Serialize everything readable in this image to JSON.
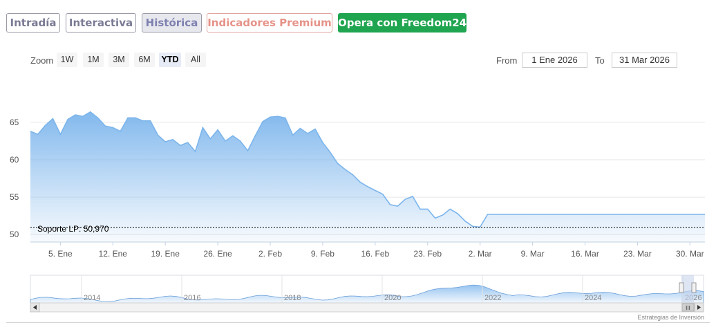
{
  "tabs": [
    {
      "label": "Intradía"
    },
    {
      "label": "Interactiva"
    },
    {
      "label": "Histórica"
    },
    {
      "label": "Indicadores Premium"
    },
    {
      "label": "Opera con Freedom24"
    }
  ],
  "range_selector": {
    "zoom_label": "Zoom",
    "buttons": [
      "1W",
      "1M",
      "3M",
      "6M",
      "YTD",
      "All"
    ],
    "selected": "YTD",
    "from_label": "From",
    "from_value": "1 Ene 2026",
    "to_label": "To",
    "to_value": "31 Mar 2026"
  },
  "colors": {
    "series_line": "#7cb5ec",
    "support_line": "#000000",
    "cta_green": "#1fa44f"
  },
  "chart_data": {
    "type": "area",
    "ylim": [
      49,
      71
    ],
    "y_ticks": [
      50,
      55,
      60,
      65
    ],
    "x_ticks": [
      {
        "label": "5. Ene",
        "x": 5
      },
      {
        "label": "12. Ene",
        "x": 12
      },
      {
        "label": "19. Ene",
        "x": 19
      },
      {
        "label": "26. Ene",
        "x": 26
      },
      {
        "label": "2. Feb",
        "x": 33
      },
      {
        "label": "9. Feb",
        "x": 40
      },
      {
        "label": "16. Feb",
        "x": 47
      },
      {
        "label": "23. Feb",
        "x": 54
      },
      {
        "label": "2. Mar",
        "x": 61
      },
      {
        "label": "9. Mar",
        "x": 68
      },
      {
        "label": "16. Mar",
        "x": 75
      },
      {
        "label": "23. Mar",
        "x": 82
      },
      {
        "label": "30. Mar",
        "x": 89
      }
    ],
    "xlim": [
      1,
      91
    ],
    "series": [
      {
        "x": [
          1,
          2,
          3,
          4,
          5,
          6,
          7,
          8,
          9,
          10,
          11,
          12,
          13,
          14,
          15,
          16,
          17,
          18,
          19,
          20,
          21,
          22,
          23,
          24,
          25,
          26,
          27,
          28,
          29,
          30,
          31,
          32,
          33,
          34,
          35,
          36,
          37,
          38,
          39,
          40,
          41,
          42,
          43,
          44,
          45,
          46,
          47,
          48,
          49,
          50,
          51,
          52,
          53,
          54,
          55,
          56,
          57,
          58,
          59,
          60,
          61,
          62,
          63,
          64,
          65,
          66,
          67,
          68,
          69,
          70,
          71,
          72,
          73,
          74,
          75,
          76,
          77,
          78,
          79,
          80,
          81,
          82,
          83,
          84,
          85,
          86,
          87,
          88,
          89,
          90,
          91
        ],
        "values": [
          63.8,
          63.4,
          64.6,
          65.5,
          63.4,
          65.4,
          66.0,
          65.8,
          66.4,
          65.6,
          64.5,
          64.3,
          63.8,
          65.6,
          65.6,
          65.2,
          65.2,
          63.3,
          62.4,
          62.7,
          61.9,
          62.3,
          61.1,
          64.3,
          62.8,
          64.0,
          62.5,
          63.2,
          62.5,
          61.2,
          63.2,
          65.1,
          65.7,
          65.8,
          65.6,
          63.3,
          64.2,
          63.5,
          64.1,
          62.3,
          61.0,
          59.5,
          58.7,
          58.0,
          57.0,
          56.4,
          55.9,
          55.4,
          54.0,
          53.8,
          54.7,
          55.1,
          53.4,
          53.4,
          52.2,
          52.6,
          53.4,
          52.8,
          51.8,
          51.1,
          51.0,
          52.7,
          52.7,
          52.7,
          52.7,
          52.7,
          52.7,
          52.7,
          52.7,
          52.7,
          52.7,
          52.7,
          52.7,
          52.7,
          52.7,
          52.7,
          52.7,
          52.7,
          52.7,
          52.7,
          52.7,
          52.7,
          52.7,
          52.7,
          52.7,
          52.7,
          52.7,
          52.7,
          52.7,
          52.7,
          52.7
        ]
      }
    ],
    "support_line": {
      "value": 50.97,
      "label": "Soporte LP: 50,970"
    },
    "navigator": {
      "x_ticks": [
        "2014",
        "2016",
        "2018",
        "2020",
        "2022",
        "2024",
        "2026"
      ],
      "handle_label": "III"
    }
  },
  "credits": "Estrategias de Inversión"
}
